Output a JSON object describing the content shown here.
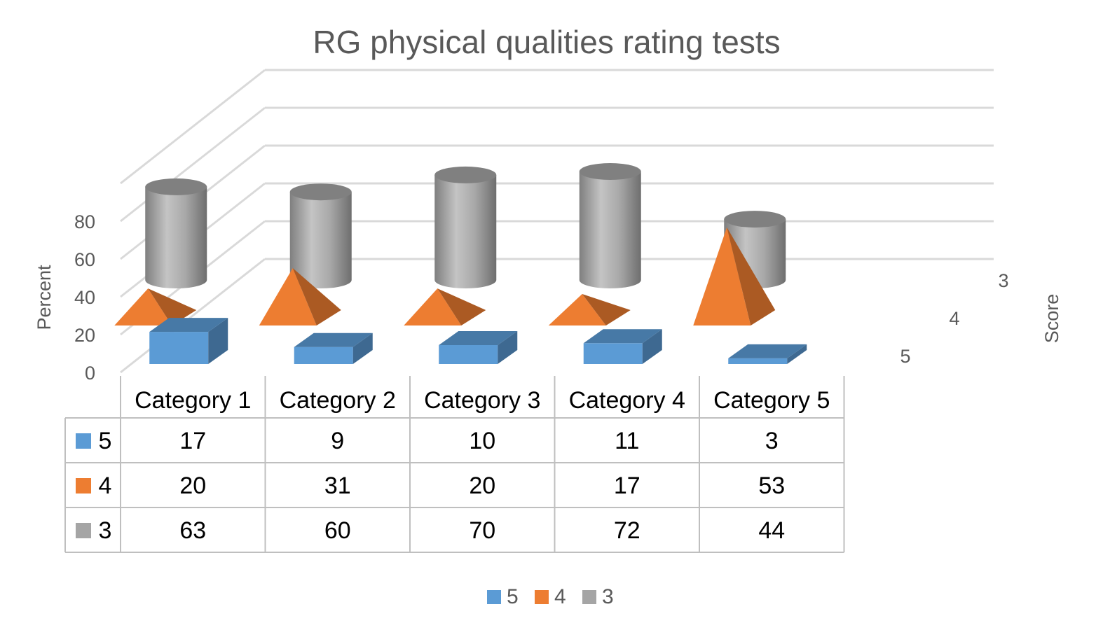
{
  "chart_data": {
    "type": "bar",
    "title": "RG physical qualities rating tests",
    "ylabel": "Percent",
    "zlabel": "Score",
    "ylim": [
      0,
      100
    ],
    "yticks": [
      0,
      20,
      40,
      60,
      80
    ],
    "categories": [
      "Category 1",
      "Category 2",
      "Category 3",
      "Category 4",
      "Category 5"
    ],
    "grid": true,
    "legend_position": "bottom",
    "data_table": true,
    "series": [
      {
        "name": "5",
        "shape": "box",
        "color": "#5B9BD5",
        "values": [
          17,
          9,
          10,
          11,
          3
        ]
      },
      {
        "name": "4",
        "shape": "pyramid",
        "color": "#ED7D31",
        "values": [
          20,
          31,
          20,
          17,
          53
        ]
      },
      {
        "name": "3",
        "shape": "cylinder",
        "color": "#A5A5A5",
        "values": [
          63,
          60,
          70,
          72,
          44
        ]
      }
    ]
  }
}
